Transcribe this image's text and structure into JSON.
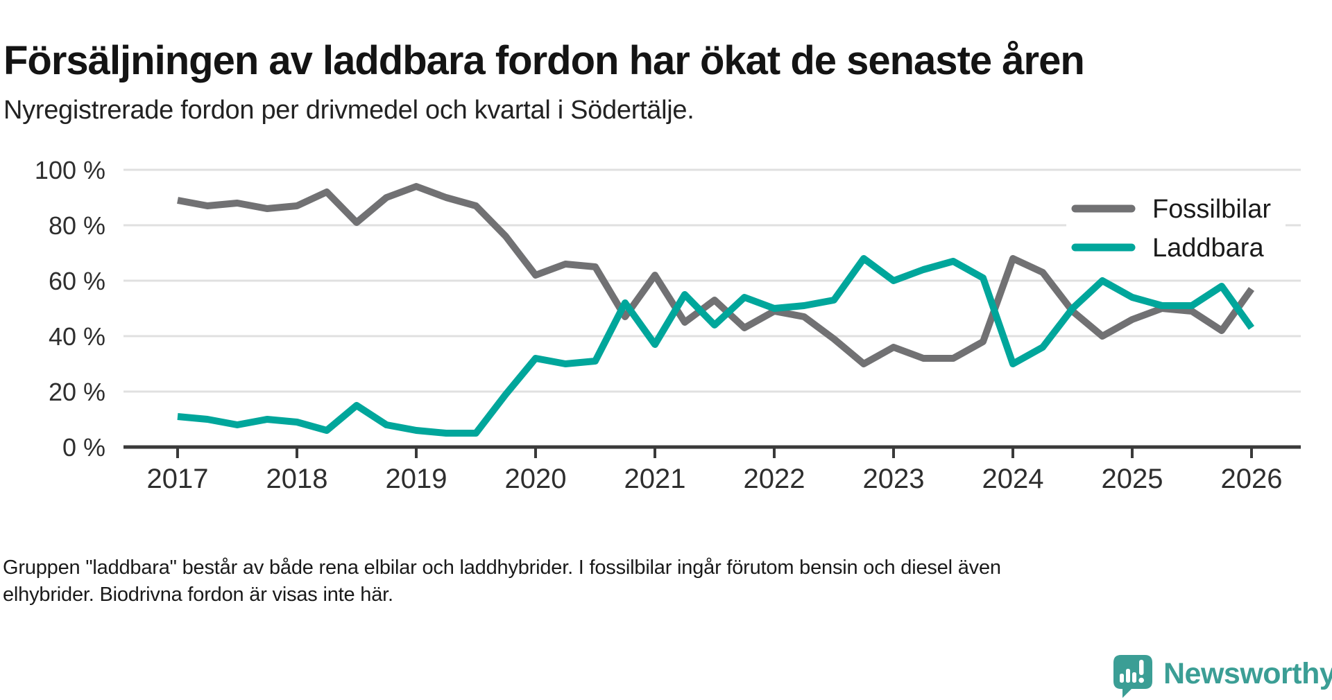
{
  "title": "Försäljningen av laddbara fordon har ökat de senaste åren",
  "subtitle": "Nyregistrerade fordon per drivmedel och kvartal i Södertälje.",
  "footer": {
    "line1": "Gruppen \"laddbara\" består av både rena elbilar och laddhybrider. I fossilbilar ingår förutom bensin och diesel även",
    "line2": "elhybrider. Biodrivna fordon är visas inte här."
  },
  "logo": {
    "text": "Newsworthy",
    "color": "#3B9E95",
    "icon": "speech-bubble-bar-chart-icon"
  },
  "colors": {
    "fossil_line": "#717173",
    "laddbara_line": "#00A69B",
    "axis": "#3a3a3a",
    "gridline": "#e0e0e0",
    "tick_label": "#2e2e2e",
    "legend_text": "#1a1a1a",
    "legend_background": "#ffffff"
  },
  "chart_data": {
    "type": "line",
    "title": "Försäljningen av laddbara fordon har ökat de senaste åren",
    "subtitle": "Nyregistrerade fordon per drivmedel och kvartal i Södertälje.",
    "xlabel": "",
    "ylabel": "",
    "ylim": [
      0,
      100
    ],
    "grid": "horizontal",
    "legend_position": "top-right-inside",
    "yticks": [
      {
        "value": 0,
        "label": "0 %"
      },
      {
        "value": 20,
        "label": "20 %"
      },
      {
        "value": 40,
        "label": "40 %"
      },
      {
        "value": 60,
        "label": "60 %"
      },
      {
        "value": 80,
        "label": "80 %"
      },
      {
        "value": 100,
        "label": "100 %"
      }
    ],
    "xtick_labels": [
      "2017",
      "2018",
      "2019",
      "2020",
      "2021",
      "2022",
      "2023",
      "2024",
      "2025",
      "2026"
    ],
    "categories": [
      "2017 Q1",
      "2017 Q2",
      "2017 Q3",
      "2017 Q4",
      "2018 Q1",
      "2018 Q2",
      "2018 Q3",
      "2018 Q4",
      "2019 Q1",
      "2019 Q2",
      "2019 Q3",
      "2019 Q4",
      "2020 Q1",
      "2020 Q2",
      "2020 Q3",
      "2020 Q4",
      "2021 Q1",
      "2021 Q2",
      "2021 Q3",
      "2021 Q4",
      "2022 Q1",
      "2022 Q2",
      "2022 Q3",
      "2022 Q4",
      "2023 Q1",
      "2023 Q2",
      "2023 Q3",
      "2023 Q4",
      "2024 Q1",
      "2024 Q2",
      "2024 Q3",
      "2024 Q4",
      "2025 Q1",
      "2025 Q2",
      "2025 Q3",
      "2025 Q4",
      "2026 Q1"
    ],
    "series": [
      {
        "name": "Fossilbilar",
        "color": "#717173",
        "values": [
          89,
          87,
          88,
          86,
          87,
          92,
          81,
          90,
          94,
          90,
          87,
          76,
          62,
          66,
          65,
          47,
          62,
          45,
          53,
          43,
          49,
          47,
          39,
          30,
          36,
          32,
          32,
          38,
          68,
          63,
          49,
          40,
          46,
          50,
          49,
          42,
          57
        ]
      },
      {
        "name": "Laddbara",
        "color": "#00A69B",
        "values": [
          11,
          10,
          8,
          10,
          9,
          6,
          15,
          8,
          6,
          5,
          5,
          19,
          32,
          30,
          31,
          52,
          37,
          55,
          44,
          54,
          50,
          51,
          53,
          68,
          60,
          64,
          67,
          61,
          30,
          36,
          50,
          60,
          54,
          51,
          51,
          58,
          43
        ]
      }
    ]
  }
}
